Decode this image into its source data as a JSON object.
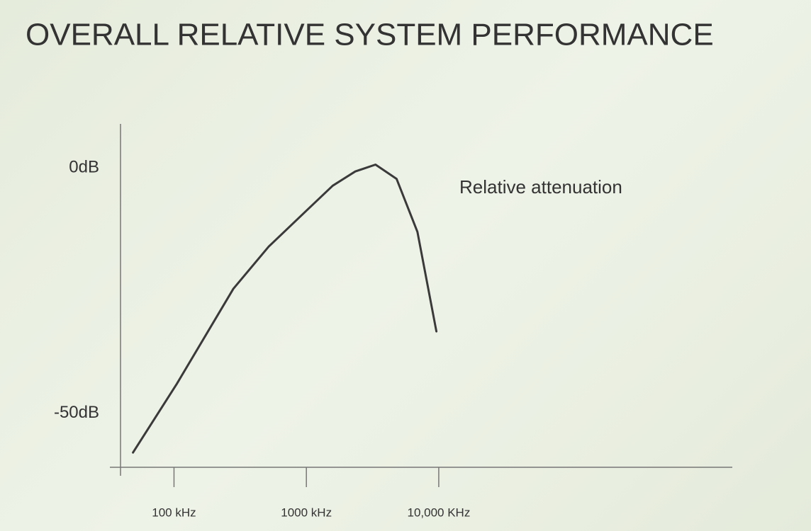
{
  "chart_data": {
    "type": "line",
    "title": "OVERALL RELATIVE SYSTEM PERFORMANCE",
    "x": [
      49,
      105,
      281,
      520,
      1000,
      1580,
      2340,
      3330,
      4800,
      6900,
      9600
    ],
    "series": [
      {
        "name": "Relative attenuation",
        "color": "#3a3a3a",
        "values": [
          -58,
          -44,
          -24.6,
          -16,
          -8.7,
          -3.6,
          -0.7,
          0.7,
          -2.2,
          -13,
          -33.3
        ]
      }
    ],
    "xscale": "log",
    "xlim": [
      43,
      1650000
    ],
    "xticks": [
      {
        "value": 100,
        "label": "100 kHz"
      },
      {
        "value": 1000,
        "label": "1000 kHz"
      },
      {
        "value": 10000,
        "label": "10,000 KHz"
      }
    ],
    "ylim": [
      -61,
      9
    ],
    "yticks": [
      {
        "value": 0,
        "label": "0dB"
      },
      {
        "value": -50,
        "label": "-50dB"
      }
    ],
    "grid": false
  }
}
